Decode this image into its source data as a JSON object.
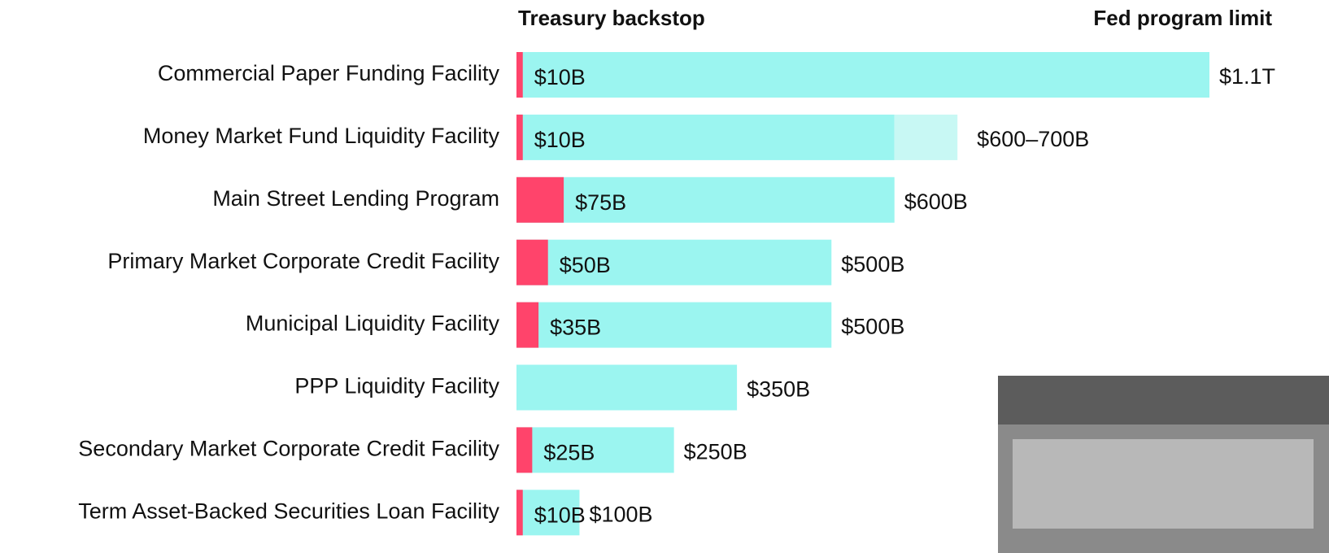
{
  "chart_data": {
    "type": "overlay-bar",
    "categories": [
      "Commercial Paper Funding Facility",
      "Money Market Fund Liquidity Facility",
      "Main Street Lending Program",
      "Primary Market Corporate Credit Facility",
      "Municipal Liquidity Facility",
      "PPP Liquidity Facility",
      "Secondary Market Corporate Credit Facility",
      "Term Asset-Backed Securities Loan Facility"
    ],
    "series": [
      {
        "name": "Fed program limit",
        "color": "#9bf5f0",
        "range_color": "#c8f8f4",
        "values": [
          1100,
          600,
          600,
          500,
          500,
          350,
          250,
          100
        ],
        "range_high": [
          null,
          700,
          null,
          null,
          null,
          null,
          null,
          null
        ],
        "value_labels": [
          "$1.1T",
          "$600–700B",
          "$600B",
          "$500B",
          "$500B",
          "$350B",
          "$250B",
          "$100B"
        ]
      },
      {
        "name": "Treasury backstop",
        "color": "#ff446b",
        "values": [
          10,
          10,
          75,
          50,
          35,
          null,
          25,
          10
        ],
        "value_labels": [
          "$10B",
          "$10B",
          "$75B",
          "$50B",
          "$35B",
          null,
          "$25B",
          "$10B"
        ]
      }
    ],
    "xlim": [
      0,
      1100
    ]
  }
}
